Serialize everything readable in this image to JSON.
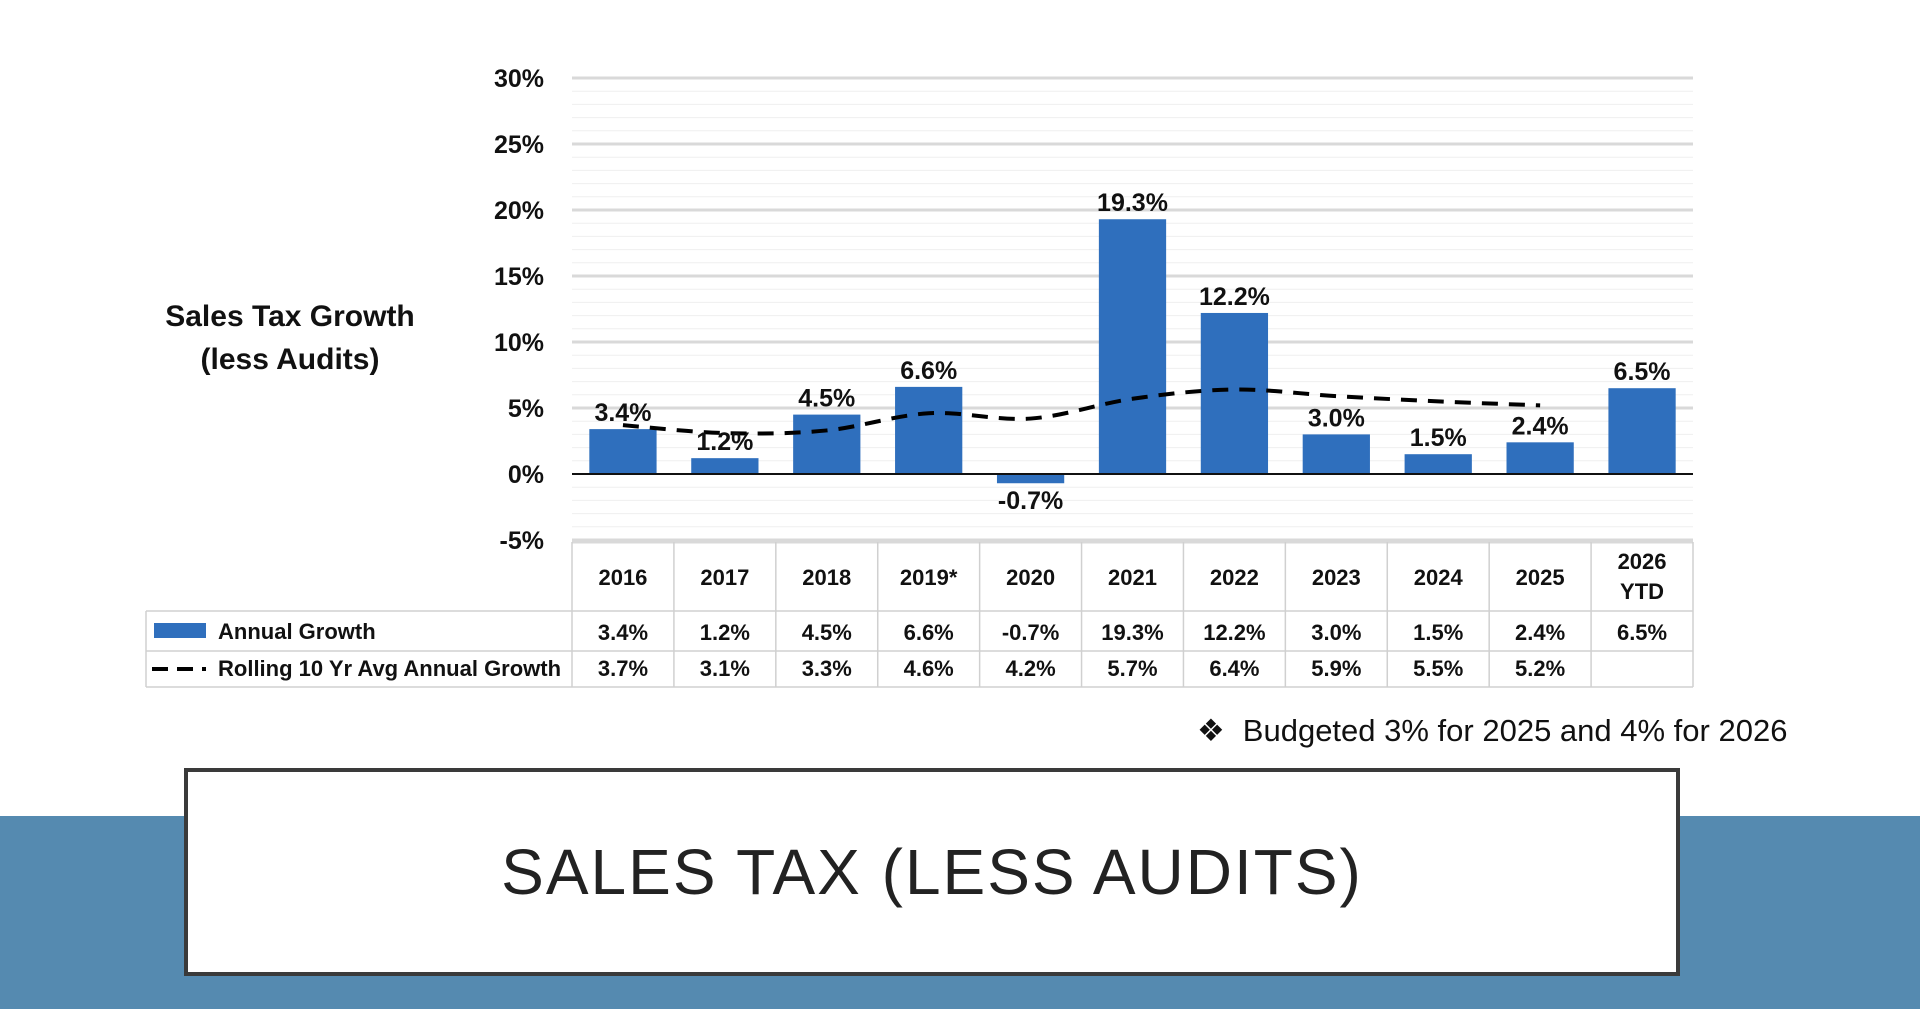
{
  "chart_title": [
    "Sales Tax Growth",
    "(less Audits)"
  ],
  "note": {
    "bullet": "❖",
    "text": "Budgeted 3% for 2025 and 4% for 2026"
  },
  "slide_title": "SALES TAX  (LESS AUDITS)",
  "colors": {
    "bar": "#2f6fbd",
    "line": "#000000",
    "band": "#558ab0",
    "grid": "#d9d9d9",
    "table_border": "#d0d0d0"
  },
  "chart_data": {
    "type": "bar",
    "categories": [
      "2016",
      "2017",
      "2018",
      "2019*",
      "2020",
      "2021",
      "2022",
      "2023",
      "2024",
      "2025",
      "2026 YTD"
    ],
    "ylim": [
      -5,
      30
    ],
    "yticks": [
      -5,
      0,
      5,
      10,
      15,
      20,
      25,
      30
    ],
    "ytick_labels": [
      "-5%",
      "0%",
      "5%",
      "10%",
      "15%",
      "20%",
      "25%",
      "30%"
    ],
    "series": [
      {
        "name": "Annual Growth",
        "kind": "bar",
        "values": [
          3.4,
          1.2,
          4.5,
          6.6,
          -0.7,
          19.3,
          12.2,
          3.0,
          1.5,
          2.4,
          6.5
        ],
        "labels": [
          "3.4%",
          "1.2%",
          "4.5%",
          "6.6%",
          "-0.7%",
          "19.3%",
          "12.2%",
          "3.0%",
          "1.5%",
          "2.4%",
          "6.5%"
        ]
      },
      {
        "name": "Rolling 10 Yr Avg Annual Growth",
        "kind": "line",
        "values": [
          3.7,
          3.1,
          3.3,
          4.6,
          4.2,
          5.7,
          6.4,
          5.9,
          5.5,
          5.2,
          null
        ],
        "labels": [
          "3.7%",
          "3.1%",
          "3.3%",
          "4.6%",
          "4.2%",
          "5.7%",
          "6.4%",
          "5.9%",
          "5.5%",
          "5.2%",
          ""
        ]
      }
    ]
  }
}
